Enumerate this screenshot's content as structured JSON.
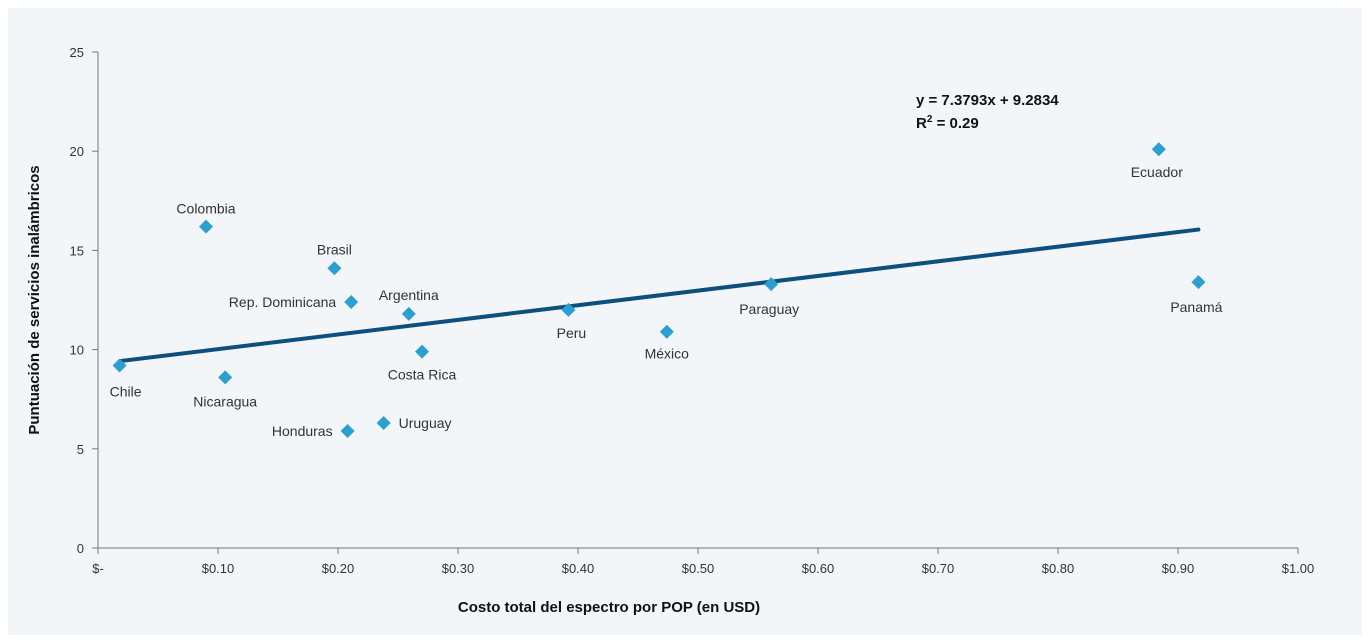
{
  "chart_data": {
    "type": "scatter",
    "title": "",
    "xlabel": "Costo total del espectro por POP (en USD)",
    "ylabel": "Puntuación de servicios inalámbricos",
    "xlim": [
      0,
      1.0
    ],
    "ylim": [
      0,
      25
    ],
    "x_ticks": [
      0,
      0.1,
      0.2,
      0.3,
      0.4,
      0.5,
      0.6,
      0.7,
      0.8,
      0.9,
      1.0
    ],
    "x_tick_labels": [
      "$-",
      "$0.10",
      "$0.20",
      "$0.30",
      "$0.40",
      "$0.50",
      "$0.60",
      "$0.70",
      "$0.80",
      "$0.90",
      "$1.00"
    ],
    "y_ticks": [
      0,
      5,
      10,
      15,
      20,
      25
    ],
    "y_tick_labels": [
      "0",
      "5",
      "10",
      "15",
      "20",
      "25"
    ],
    "grid": false,
    "legend": "none",
    "marker_color": "#2a9fd0",
    "trendline_color": "#0d4f7e",
    "points": [
      {
        "label": "Chile",
        "x": 0.018,
        "y": 9.2
      },
      {
        "label": "Colombia",
        "x": 0.09,
        "y": 16.2
      },
      {
        "label": "Nicaragua",
        "x": 0.106,
        "y": 8.6
      },
      {
        "label": "Brasil",
        "x": 0.197,
        "y": 14.1
      },
      {
        "label": "Honduras",
        "x": 0.208,
        "y": 5.9
      },
      {
        "label": "Rep. Dominicana",
        "x": 0.211,
        "y": 12.4
      },
      {
        "label": "Uruguay",
        "x": 0.238,
        "y": 6.3
      },
      {
        "label": "Argentina",
        "x": 0.259,
        "y": 11.8
      },
      {
        "label": "Costa Rica",
        "x": 0.27,
        "y": 9.9
      },
      {
        "label": "Peru",
        "x": 0.392,
        "y": 12.0
      },
      {
        "label": "México",
        "x": 0.474,
        "y": 10.9
      },
      {
        "label": "Paraguay",
        "x": 0.561,
        "y": 13.3
      },
      {
        "label": "Ecuador",
        "x": 0.884,
        "y": 20.1
      },
      {
        "label": "Panamá",
        "x": 0.917,
        "y": 13.4
      }
    ],
    "trendline": {
      "slope": 7.3793,
      "intercept": 9.2834,
      "x_range": [
        0.018,
        0.917
      ],
      "equation": "y = 7.3793x + 9.2834",
      "r2_prefix": "R",
      "r2_exp": "2",
      "r2_value": " = 0.29"
    }
  }
}
